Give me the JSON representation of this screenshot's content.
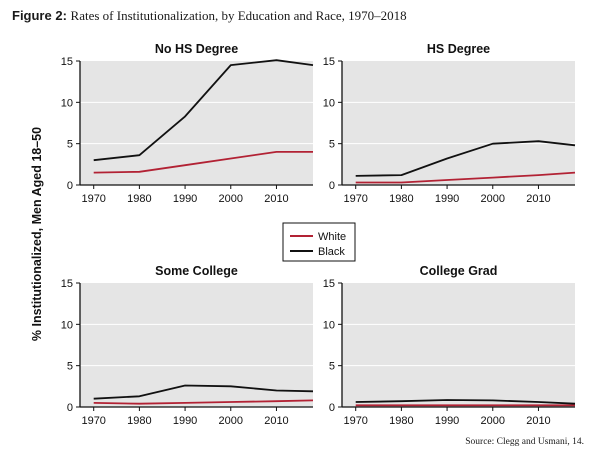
{
  "figure": {
    "label": "Figure 2:",
    "title": "Rates of Institutionalization, by Education and Race, 1970–2018",
    "source": "Source: Clegg and Usmani, 14."
  },
  "colors": {
    "white": "#b22234",
    "black": "#111111",
    "panel_bg": "#e5e5e5"
  },
  "chart_data": {
    "type": "line",
    "ylabel": "% Institutionalized, Men Aged 18–50",
    "ylim": [
      0,
      15
    ],
    "yticks": [
      "0",
      "5",
      "10",
      "15"
    ],
    "xlim": [
      1967,
      2018
    ],
    "xticks": [
      "1970",
      "1980",
      "1990",
      "2000",
      "2010"
    ],
    "legend": {
      "position": "center",
      "entries": [
        "White",
        "Black"
      ]
    },
    "panels": [
      {
        "title": "No HS Degree",
        "series": [
          {
            "name": "White",
            "x": [
              1970,
              1980,
              1990,
              2000,
              2010,
              2018
            ],
            "y": [
              1.5,
              1.6,
              2.4,
              3.2,
              4.0,
              4.0
            ]
          },
          {
            "name": "Black",
            "x": [
              1970,
              1980,
              1990,
              2000,
              2010,
              2018
            ],
            "y": [
              3.0,
              3.6,
              8.3,
              14.5,
              15.1,
              14.5
            ]
          }
        ]
      },
      {
        "title": "HS Degree",
        "series": [
          {
            "name": "White",
            "x": [
              1970,
              1980,
              1990,
              2000,
              2010,
              2018
            ],
            "y": [
              0.3,
              0.3,
              0.6,
              0.9,
              1.2,
              1.5
            ]
          },
          {
            "name": "Black",
            "x": [
              1970,
              1980,
              1990,
              2000,
              2010,
              2018
            ],
            "y": [
              1.1,
              1.2,
              3.2,
              5.0,
              5.3,
              4.8
            ]
          }
        ]
      },
      {
        "title": "Some College",
        "series": [
          {
            "name": "White",
            "x": [
              1970,
              1980,
              1990,
              2000,
              2010,
              2018
            ],
            "y": [
              0.5,
              0.4,
              0.5,
              0.6,
              0.7,
              0.8
            ]
          },
          {
            "name": "Black",
            "x": [
              1970,
              1980,
              1990,
              2000,
              2010,
              2018
            ],
            "y": [
              1.0,
              1.3,
              2.6,
              2.5,
              2.0,
              1.9
            ]
          }
        ]
      },
      {
        "title": "College Grad",
        "series": [
          {
            "name": "White",
            "x": [
              1970,
              1980,
              1990,
              2000,
              2010,
              2018
            ],
            "y": [
              0.2,
              0.2,
              0.2,
              0.2,
              0.2,
              0.2
            ]
          },
          {
            "name": "Black",
            "x": [
              1970,
              1980,
              1990,
              2000,
              2010,
              2018
            ],
            "y": [
              0.6,
              0.7,
              0.85,
              0.8,
              0.6,
              0.4
            ]
          }
        ]
      }
    ]
  }
}
